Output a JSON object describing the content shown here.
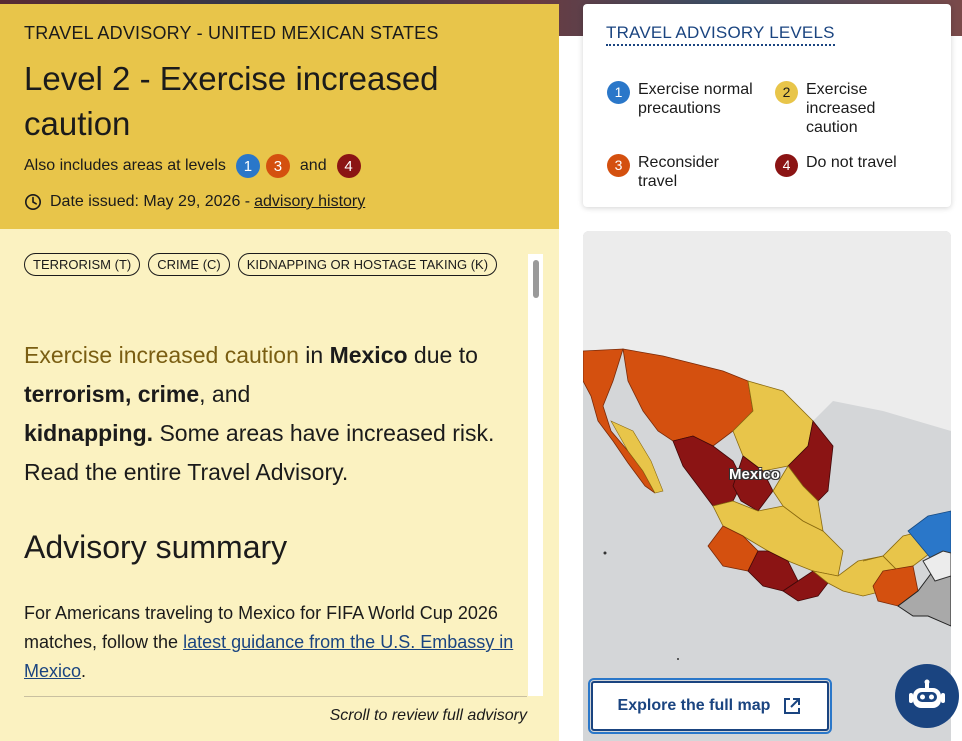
{
  "header": {
    "kicker": "TRAVEL ADVISORY - UNITED MEXICAN STATES",
    "title": "Level 2 - Exercise increased caution",
    "also_includes_prefix": "Also includes areas at levels",
    "also_levels": [
      "1",
      "3",
      "4"
    ],
    "also_and": "and",
    "date_label": "Date issued: May 29, 2026 -",
    "history_link": "advisory history"
  },
  "tags": [
    "TERRORISM (T)",
    "CRIME (C)",
    "KIDNAPPING OR HOSTAGE TAKING (K)"
  ],
  "intro": {
    "highlight": "Exercise increased caution",
    "t1": " in ",
    "country": "Mexico",
    "t2": " due to ",
    "terrorism": "terrorism",
    "comma1": ", ",
    "crime": "crime",
    "t3": ", and ",
    "kidnapping": "kidnapping.",
    "t4": " Some areas have increased risk. Read the entire Travel Advisory."
  },
  "summary": {
    "heading": "Advisory summary",
    "p_start": "For Americans traveling to Mexico for FIFA World Cup 2026 matches, follow the ",
    "p_link": "latest guidance from the U.S. Embassy in Mexico",
    "p_end": "."
  },
  "scroll_hint": "Scroll to review full advisory",
  "legend": {
    "title": "TRAVEL ADVISORY LEVELS",
    "items": [
      {
        "num": "1",
        "label": "Exercise normal precautions",
        "color": "#2a77c9"
      },
      {
        "num": "2",
        "label": "Exercise increased caution",
        "color": "#e8c54a"
      },
      {
        "num": "3",
        "label": "Reconsider travel",
        "color": "#d4500f"
      },
      {
        "num": "4",
        "label": "Do not travel",
        "color": "#8b1414"
      }
    ]
  },
  "map": {
    "label": "Mexico",
    "explore_button": "Explore the full map"
  },
  "icons": {
    "clock": "clock-icon",
    "external": "external-link-icon",
    "chatbot": "robot-icon"
  }
}
